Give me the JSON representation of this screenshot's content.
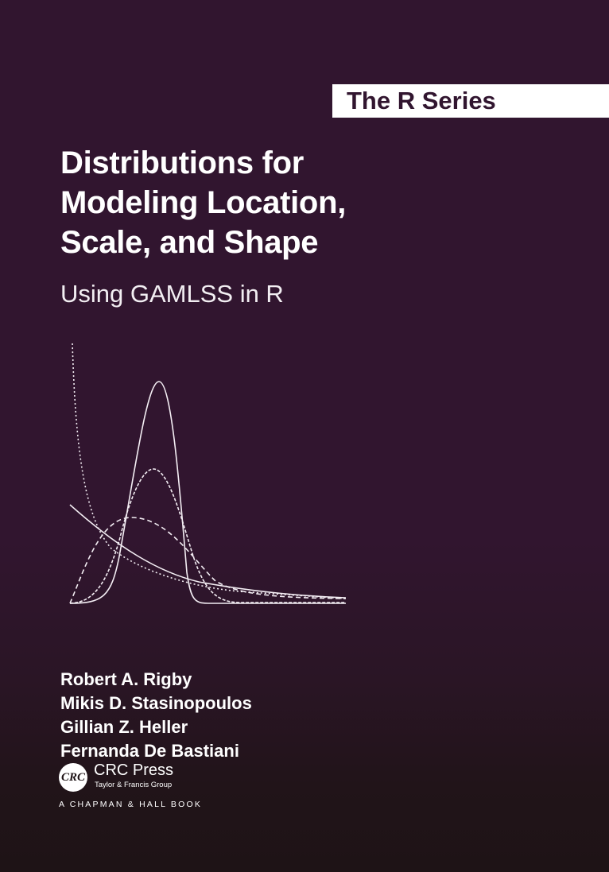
{
  "series": "The R Series",
  "title_lines": [
    "Distributions for",
    "Modeling Location,",
    "Scale, and Shape"
  ],
  "subtitle": "Using GAMLSS in R",
  "authors": [
    "Robert A. Rigby",
    "Mikis D. Stasinopoulos",
    "Gillian Z. Heller",
    "Fernanda De Bastiani"
  ],
  "publisher": {
    "logo_text": "CRC",
    "name": "CRC Press",
    "group": "Taylor & Francis Group",
    "imprint": "A CHAPMAN & HALL BOOK"
  },
  "colors": {
    "background": "#31152f",
    "background_bottom": "#1e1316",
    "text": "#ffffff"
  },
  "illustration": "distribution-curves"
}
